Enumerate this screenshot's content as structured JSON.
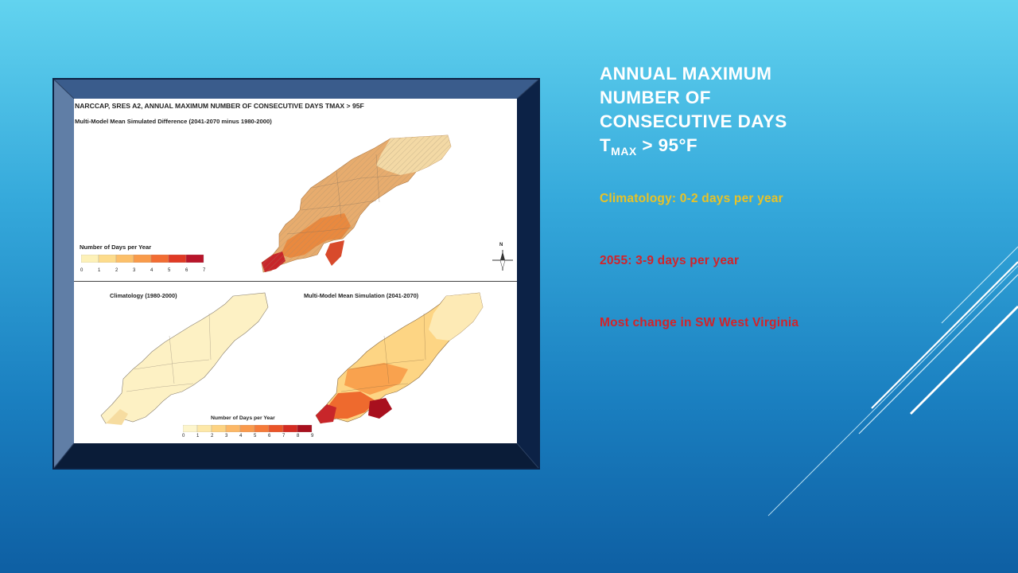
{
  "slide": {
    "heading": {
      "line1": "ANNUAL MAXIMUM",
      "line2": "NUMBER OF",
      "line3": "CONSECUTIVE DAYS",
      "t_letter": "T",
      "t_subscript": "MAX",
      "line4_rest": " > 95°F"
    },
    "bullets": [
      {
        "text": "Climatology: 0-2 days per year",
        "color": "#e8c227"
      },
      {
        "text": "2055: 3-9 days per year",
        "color": "#d2232a"
      },
      {
        "text": "Most change in SW West Virginia",
        "color": "#d2232a"
      }
    ],
    "colors": {
      "frame_border": "#0d2244",
      "frame_bevel_top": "#3a5c8c",
      "frame_bevel_side": "#607ea6",
      "frame_bevel_bottom": "#0a1c38"
    }
  },
  "figure": {
    "title": "NARCCAP, SRES A2, ANNUAL MAXIMUM NUMBER OF CONSECUTIVE DAYS TMAX > 95F",
    "subtitle": "Multi-Model Mean Simulated Difference (2041-2070 minus 1980-2000)",
    "legend_top": {
      "title": "Number of Days per Year",
      "ticks": [
        "0",
        "1",
        "2",
        "3",
        "4",
        "5",
        "6",
        "7"
      ],
      "colors": [
        "#fdf1b8",
        "#fddc8c",
        "#fcc06a",
        "#f99b4a",
        "#f26d33",
        "#e03a25",
        "#b8152a"
      ]
    },
    "north_label": "N",
    "climatology_title": "Climatology (1980-2000)",
    "simulation_title": "Multi-Model Mean Simulation (2041-2070)",
    "legend_bottom": {
      "title": "Number of Days per Year",
      "ticks": [
        "0",
        "1",
        "2",
        "3",
        "4",
        "5",
        "6",
        "7",
        "8",
        "9"
      ],
      "colors": [
        "#fdf5cc",
        "#fde8a8",
        "#fdd382",
        "#fcb867",
        "#f99a4d",
        "#f57b3a",
        "#ea5428",
        "#d42c22",
        "#a8101e"
      ]
    }
  }
}
